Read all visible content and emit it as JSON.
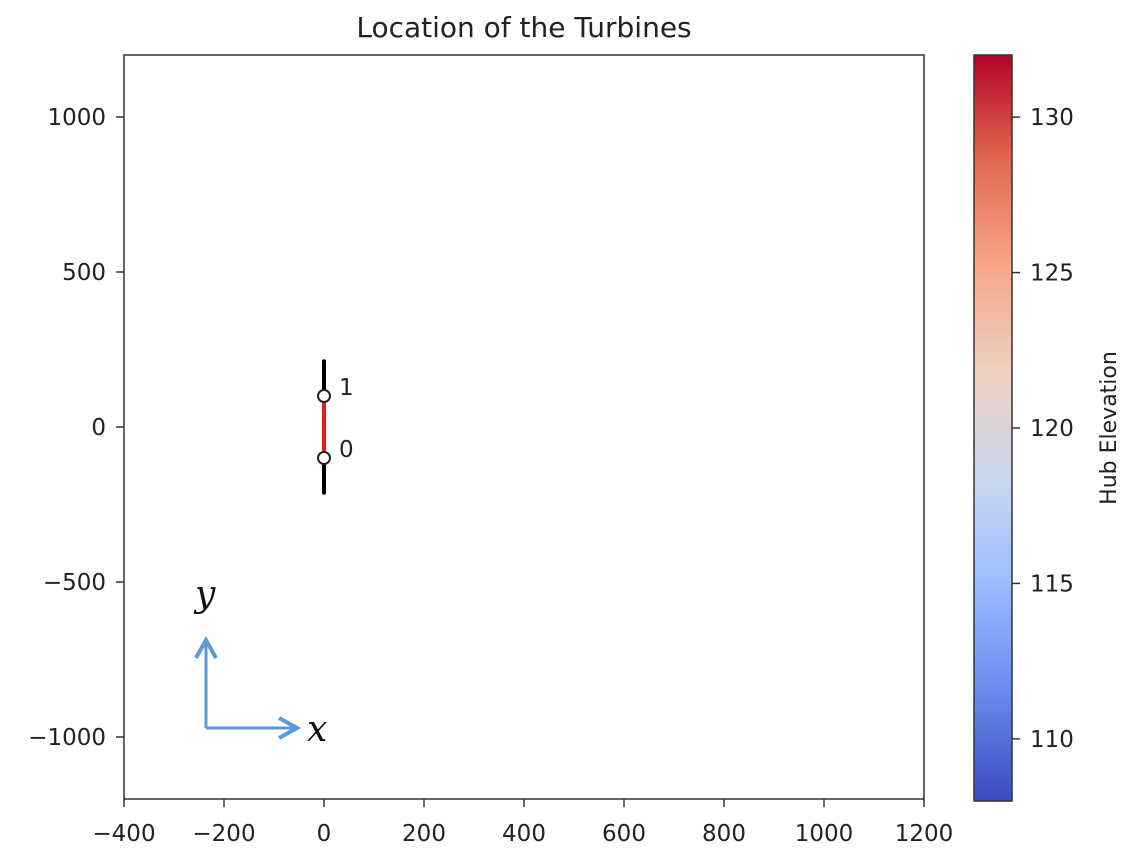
{
  "chart_data": {
    "type": "scatter",
    "title": "Location of the Turbines",
    "xlim": [
      -400,
      1200
    ],
    "ylim": [
      -1200,
      1200
    ],
    "xticks": [
      -400,
      -200,
      0,
      200,
      400,
      600,
      800,
      1000,
      1200
    ],
    "xtick_labels": [
      "−400",
      "−200",
      "0",
      "200",
      "400",
      "600",
      "800",
      "1000",
      "1200"
    ],
    "yticks": [
      -1000,
      -500,
      0,
      500,
      1000
    ],
    "ytick_labels": [
      "−1000",
      "−500",
      "0",
      "500",
      "1000"
    ],
    "turbines": [
      {
        "label": "0",
        "x": 0,
        "y": -100,
        "rotor_diameter": 224
      },
      {
        "label": "1",
        "x": 0,
        "y": 100,
        "rotor_diameter": 224
      }
    ],
    "connection": {
      "from": "0",
      "to": "1",
      "color": "#e8191b"
    },
    "colorbar": {
      "label": "Hub Elevation",
      "range": [
        108,
        132
      ],
      "ticks": [
        110,
        115,
        120,
        125,
        130
      ],
      "colormap": "coolwarm",
      "stops": [
        "#3b4cc0",
        "#6788ee",
        "#9abbff",
        "#c9d7f0",
        "#edd1c2",
        "#f7a889",
        "#e26952",
        "#b40426"
      ]
    },
    "annotations": {
      "x_axis_symbol": "x",
      "y_axis_symbol": "y",
      "arrow_color": "#5b9bd5"
    }
  }
}
